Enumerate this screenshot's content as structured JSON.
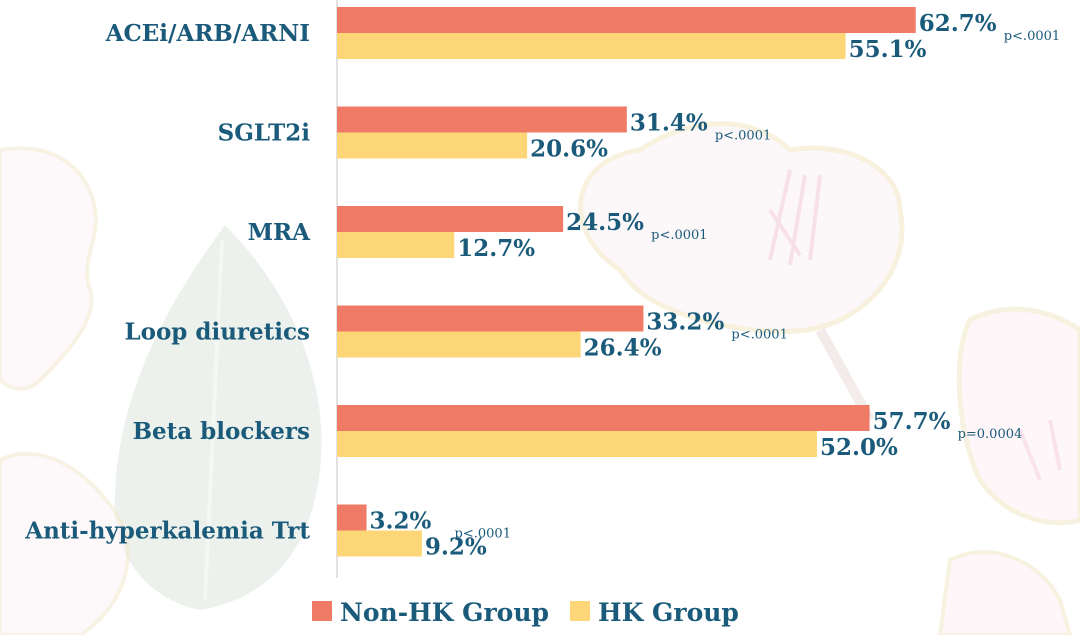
{
  "chart_data": {
    "type": "bar",
    "orientation": "horizontal",
    "title": "",
    "xlabel": "",
    "ylabel": "",
    "xlim": [
      0,
      80
    ],
    "unit": "%",
    "grid": false,
    "categories": [
      "ACEi/ARB/ARNI",
      "SGLT2i",
      "MRA",
      "Loop diuretics",
      "Beta blockers",
      "Anti-hyperkalemia Trt"
    ],
    "series": [
      {
        "name": "Non-HK Group",
        "color": "#ef7b66",
        "values": [
          62.7,
          31.4,
          24.5,
          33.2,
          57.7,
          3.2
        ],
        "labels": [
          "62.7%",
          "31.4%",
          "24.5%",
          "33.2%",
          "57.7%",
          "3.2%"
        ]
      },
      {
        "name": "HK Group",
        "color": "#fdd678",
        "values": [
          55.1,
          20.6,
          12.7,
          26.4,
          52.0,
          9.2
        ],
        "labels": [
          "55.1%",
          "20.6%",
          "12.7%",
          "26.4%",
          "52.0%",
          "9.2%"
        ]
      }
    ],
    "p_values": [
      "p<.0001",
      "p<.0001",
      "p<.0001",
      "p<.0001",
      "p=0.0004",
      "p<.0001"
    ],
    "legend": {
      "position": "bottom",
      "entries": [
        "Non-HK Group",
        "HK Group"
      ]
    },
    "colors": {
      "text": "#1a5a7a",
      "axis": "#d9d9d9"
    }
  }
}
